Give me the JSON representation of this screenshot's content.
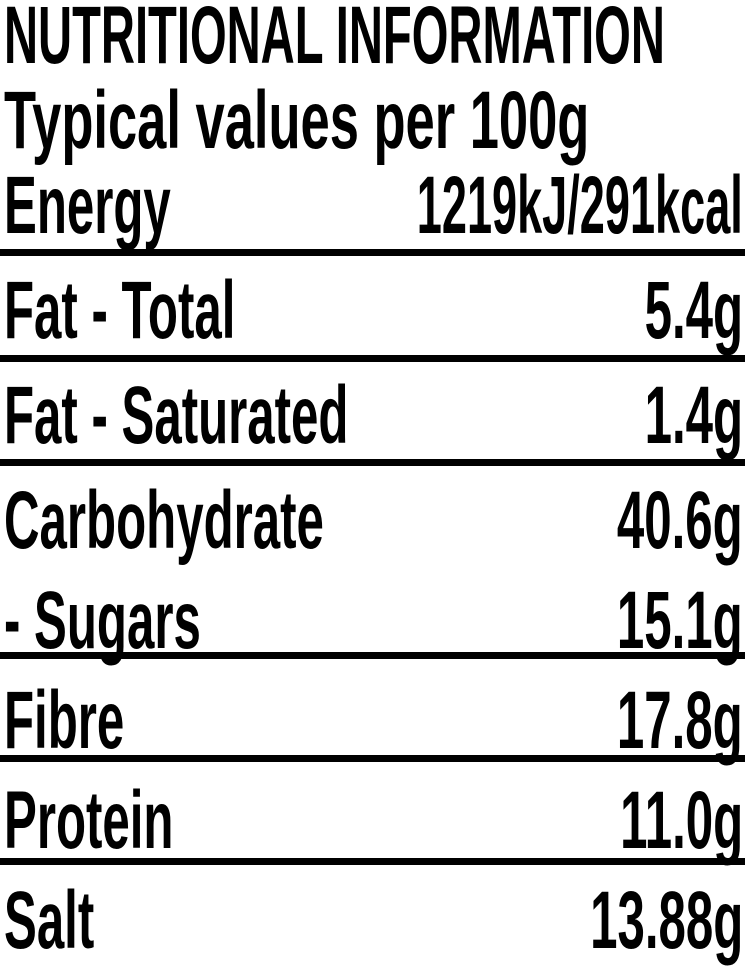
{
  "title": "NUTRITIONAL INFORMATION",
  "subtitle": "Typical values per 100g",
  "rows": [
    {
      "label": "Energy",
      "value": "1219kJ/291kcal"
    },
    {
      "label": "Fat - Total",
      "value": "5.4g"
    },
    {
      "label": "Fat - Saturated",
      "value": "1.4g"
    },
    {
      "label": "Carbohydrate",
      "value": "40.6g"
    },
    {
      "label": "- Sugars",
      "value": "15.1g"
    },
    {
      "label": "Fibre",
      "value": "17.8g"
    },
    {
      "label": "Protein",
      "value": "11.0g"
    },
    {
      "label": "Salt",
      "value": "13.88g"
    }
  ]
}
